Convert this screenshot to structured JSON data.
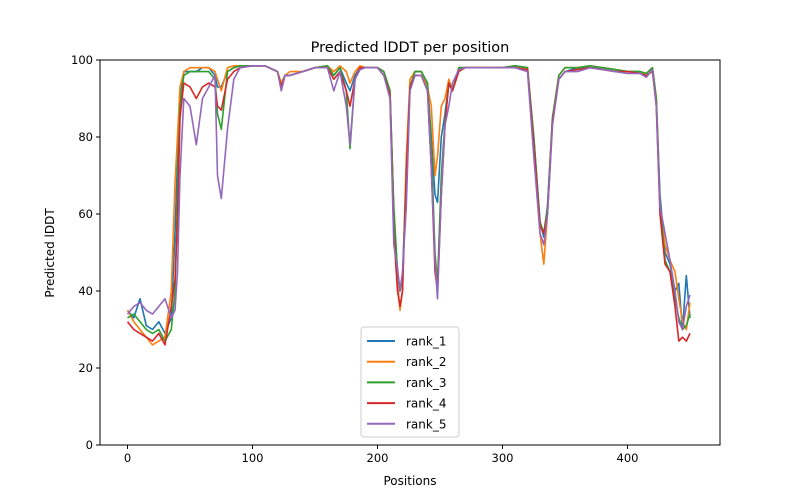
{
  "chart_data": {
    "type": "line",
    "title": "Predicted lDDT per position",
    "xlabel": "Positions",
    "ylabel": "Predicted lDDT",
    "xlim": [
      -22,
      474
    ],
    "ylim": [
      0,
      100
    ],
    "xticks": [
      0,
      100,
      200,
      300,
      400
    ],
    "yticks": [
      0,
      20,
      40,
      60,
      80,
      100
    ],
    "grid": false,
    "legend_position": "lower-center",
    "x": [
      0,
      5,
      10,
      15,
      20,
      25,
      30,
      35,
      38,
      40,
      42,
      45,
      50,
      55,
      60,
      65,
      70,
      72,
      75,
      80,
      85,
      90,
      100,
      110,
      120,
      123,
      126,
      130,
      140,
      150,
      160,
      165,
      170,
      175,
      178,
      182,
      186,
      190,
      200,
      205,
      210,
      213,
      216,
      218,
      220,
      223,
      226,
      230,
      235,
      240,
      243,
      246,
      248,
      251,
      254,
      257,
      260,
      265,
      270,
      280,
      290,
      300,
      310,
      320,
      325,
      330,
      333,
      336,
      340,
      345,
      350,
      360,
      370,
      380,
      390,
      400,
      410,
      415,
      420,
      423,
      426,
      430,
      434,
      438,
      441,
      444,
      447,
      450
    ],
    "series": [
      {
        "name": "rank_1",
        "color": "#1f77b4",
        "values": [
          35,
          33,
          38,
          31,
          30,
          32,
          29,
          33,
          55,
          74,
          90,
          97,
          97,
          97,
          98,
          98,
          96,
          93,
          93,
          97,
          98,
          98.5,
          98.5,
          98.5,
          97,
          93,
          96,
          96,
          97,
          98,
          98,
          96,
          98,
          94,
          92,
          96,
          98,
          98,
          98,
          97,
          92,
          60,
          45,
          40,
          44,
          70,
          93,
          97,
          97,
          94,
          80,
          65,
          63,
          80,
          86,
          94,
          92,
          98,
          98,
          98,
          98,
          98,
          98.5,
          98,
          80,
          58,
          54,
          62,
          85,
          95,
          97,
          98,
          98,
          98,
          97.5,
          97,
          97,
          96.5,
          98,
          90,
          65,
          50,
          47,
          40,
          42,
          30,
          44,
          33
        ]
      },
      {
        "name": "rank_2",
        "color": "#ff7f0e",
        "values": [
          35,
          32,
          30,
          28,
          26,
          27,
          28,
          40,
          68,
          80,
          93,
          97,
          98,
          98,
          98,
          98,
          97,
          95,
          92,
          98,
          98.5,
          98.5,
          98.5,
          98.5,
          97,
          94,
          96,
          97,
          97,
          98,
          98.5,
          97,
          98.5,
          97,
          94,
          97,
          98.5,
          98,
          98,
          97,
          92,
          60,
          42,
          35,
          40,
          75,
          95,
          97,
          97,
          93,
          88,
          70,
          75,
          88,
          90,
          95,
          92,
          98,
          98,
          98,
          98,
          98,
          98.5,
          98,
          78,
          55,
          47,
          60,
          85,
          96,
          98,
          98,
          98.5,
          98,
          97.5,
          97,
          97,
          96.5,
          98,
          90,
          62,
          52,
          48,
          45,
          38,
          32,
          30,
          37
        ]
      },
      {
        "name": "rank_3",
        "color": "#2ca02c",
        "values": [
          33,
          34,
          32,
          30,
          29,
          30,
          27,
          30,
          40,
          65,
          88,
          96,
          97,
          97,
          97,
          97,
          95,
          86,
          82,
          97,
          98,
          98.5,
          98.5,
          98.5,
          97,
          93,
          96,
          96,
          97,
          98,
          98.5,
          96,
          98,
          92,
          77,
          95,
          98,
          98,
          98,
          97,
          92,
          62,
          45,
          40,
          43,
          70,
          93,
          97,
          97,
          94,
          78,
          50,
          42,
          70,
          84,
          94,
          92,
          98,
          98,
          98,
          98,
          98,
          98.5,
          98,
          80,
          58,
          55,
          62,
          85,
          96,
          98,
          98,
          98.5,
          98,
          97.5,
          97,
          97,
          96.5,
          98,
          90,
          63,
          48,
          45,
          38,
          33,
          30,
          31,
          34
        ]
      },
      {
        "name": "rank_4",
        "color": "#d62728",
        "values": [
          32,
          30,
          29,
          28,
          27,
          29,
          26,
          36,
          43,
          58,
          85,
          94,
          93,
          90,
          93,
          94,
          93,
          88,
          87,
          95,
          97,
          98,
          98.5,
          98.5,
          97,
          93,
          96,
          96,
          97,
          98,
          98,
          95,
          97,
          92,
          88,
          95,
          98,
          98,
          98,
          96,
          91,
          55,
          40,
          36,
          40,
          70,
          93,
          96,
          96,
          92,
          72,
          45,
          40,
          65,
          83,
          94,
          92,
          97,
          98,
          98,
          98,
          98,
          98,
          97.5,
          78,
          57,
          55,
          60,
          84,
          95,
          97,
          97.5,
          98,
          97.5,
          97,
          97,
          96.5,
          96,
          97,
          88,
          60,
          47,
          45,
          36,
          27,
          28,
          27,
          29
        ]
      },
      {
        "name": "rank_5",
        "color": "#9467bd",
        "values": [
          34,
          36,
          37,
          35,
          34,
          36,
          38,
          33,
          35,
          45,
          70,
          90,
          88,
          78,
          90,
          93,
          96,
          70,
          64,
          82,
          95,
          98,
          98.5,
          98.5,
          97,
          92,
          96,
          96,
          97,
          98,
          98,
          92,
          97,
          88,
          78,
          95,
          97.5,
          98,
          98,
          96,
          90,
          52,
          46,
          40,
          45,
          62,
          92,
          96,
          96,
          92,
          72,
          48,
          38,
          65,
          83,
          88,
          94,
          97.5,
          98,
          98,
          98,
          98,
          98,
          97,
          75,
          55,
          52,
          60,
          83,
          95,
          97,
          97,
          98,
          97.5,
          97,
          96.5,
          96.5,
          95.5,
          97.5,
          88,
          62,
          55,
          48,
          40,
          32,
          30,
          36,
          39
        ]
      }
    ]
  }
}
